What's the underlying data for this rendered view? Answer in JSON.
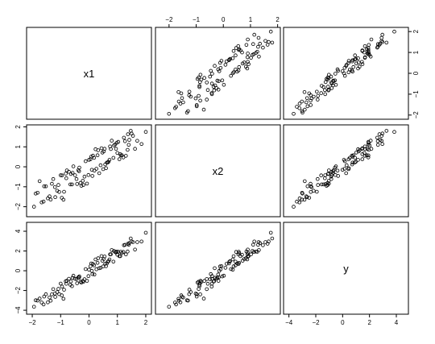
{
  "chart_data": {
    "type": "scatter",
    "title": "",
    "variables": [
      {
        "name": "x1",
        "range": [
          -2.2,
          2.2
        ],
        "ticks": [
          -2,
          -1,
          0,
          1,
          2
        ]
      },
      {
        "name": "x2",
        "range": [
          -2.5,
          2.1
        ],
        "ticks": [
          -2,
          -1,
          0,
          1,
          2
        ]
      },
      {
        "name": "y",
        "range": [
          -4.4,
          4.9
        ],
        "ticks": [
          -4,
          -2,
          0,
          2,
          4
        ]
      }
    ],
    "tick_layout": {
      "top": [
        "x2"
      ],
      "bottom": [
        "x1",
        "y"
      ],
      "left": [
        "x2",
        "y"
      ],
      "right": [
        "x1"
      ]
    },
    "observations": {
      "x1": [
        -1.94,
        -1.81,
        -1.67,
        -1.52,
        -1.39,
        -1.26,
        -1.12,
        -1.0,
        -0.88,
        -0.78,
        -0.66,
        -0.55,
        -0.44,
        -0.34,
        -0.22,
        -0.12,
        -0.02,
        0.08,
        0.19,
        0.3,
        0.41,
        0.52,
        0.63,
        0.74,
        0.86,
        0.98,
        1.1,
        1.23,
        1.36,
        1.5,
        -1.88,
        -1.6,
        -1.31,
        -1.05,
        -0.82,
        -0.6,
        -0.38,
        -0.16,
        0.05,
        0.26,
        0.47,
        0.69,
        0.92,
        1.16,
        1.42,
        -1.74,
        -1.19,
        -0.71,
        -0.27,
        0.14,
        0.57,
        1.03,
        1.62,
        -0.95,
        0.36,
        0.8,
        1.3,
        -1.45,
        -0.49,
        -0.07,
        0.23,
        0.66,
        1.07,
        1.55,
        1.85,
        -1.58,
        -1.08,
        -0.9,
        -0.58,
        -0.3,
        0.0,
        0.12,
        0.44,
        0.72,
        0.95,
        1.21,
        1.47,
        -1.35,
        -0.8,
        -0.42,
        0.32,
        0.6,
        0.88,
        1.12,
        1.37,
        -1.2,
        -0.64,
        -0.2,
        0.18,
        0.5,
        0.77,
        1.0,
        1.27,
        1.7,
        -0.96,
        -0.35,
        0.1,
        0.55,
        1.4,
        2.0
      ],
      "x2": [
        -2.0,
        -1.3,
        -1.78,
        -0.98,
        -1.48,
        -0.61,
        -1.2,
        -0.42,
        -1.25,
        -0.18,
        -0.88,
        0.02,
        -0.61,
        -0.04,
        -0.7,
        0.28,
        -0.41,
        0.51,
        -0.19,
        0.58,
        0.08,
        0.77,
        0.21,
        1.02,
        0.45,
        1.2,
        0.63,
        1.46,
        0.85,
        1.67,
        -1.34,
        -1.74,
        -0.85,
        -1.26,
        -0.34,
        -0.88,
        -0.17,
        -0.49,
        0.38,
        -0.1,
        0.71,
        0.25,
        1.12,
        0.58,
        1.35,
        -0.72,
        -1.52,
        -0.25,
        -0.95,
        0.56,
        0.12,
        1.25,
        0.9,
        -0.43,
        -0.32,
        1.31,
        0.55,
        -1.58,
        -0.42,
        -0.84,
        0.88,
        0.22,
        0.38,
        1.55,
        1.14,
        -0.98,
        -0.91,
        -1.65,
        -0.3,
        -0.81,
        0.35,
        -0.46,
        0.93,
        0.35,
        0.9,
        0.47,
        1.8,
        -1.64,
        -0.57,
        -0.86,
        0.83,
        -0.07,
        1.07,
        0.57,
        1.63,
        -1.02,
        -0.36,
        -0.91,
        0.45,
        -0.12,
        0.89,
        0.69,
        1.28,
        1.3,
        -1.55,
        -0.22,
        -0.15,
        0.9,
        1.1,
        1.75
      ],
      "y": [
        -3.65,
        -3.02,
        -3.22,
        -2.38,
        -2.71,
        -1.86,
        -2.16,
        -1.3,
        -1.92,
        -1.02,
        -1.42,
        -0.5,
        -0.84,
        -0.57,
        -1.03,
        0.17,
        -0.54,
        0.74,
        -0.38,
        0.8,
        0.3,
        1.19,
        0.74,
        1.66,
        0.92,
        1.94,
        1.47,
        2.58,
        1.95,
        2.97,
        -2.99,
        -3.41,
        -2.39,
        -2.37,
        -1.06,
        -1.56,
        -0.66,
        -0.86,
        0.45,
        0.15,
        1.02,
        0.98,
        1.91,
        1.79,
        2.8,
        -2.82,
        -2.65,
        -0.81,
        -1.2,
        0.69,
        0.71,
        1.92,
        2.14,
        -1.6,
        0.26,
        2.09,
        1.66,
        -3.2,
        -0.82,
        -1.02,
        1.15,
        0.91,
        1.47,
        2.9,
        2.96,
        -2.61,
        -1.84,
        -2.84,
        -0.71,
        -1.11,
        0.1,
        -0.34,
        1.48,
        1.15,
        1.85,
        1.91,
        3.27,
        -3.03,
        -1.32,
        -1.27,
        1.26,
        0.46,
        2.0,
        1.92,
        2.74,
        -2.31,
        -1.09,
        -1.11,
        0.54,
        0.44,
        1.67,
        1.62,
        2.62,
        2.9,
        -2.49,
        -0.7,
        -0.01,
        1.44,
        2.63,
        3.85
      ]
    }
  }
}
